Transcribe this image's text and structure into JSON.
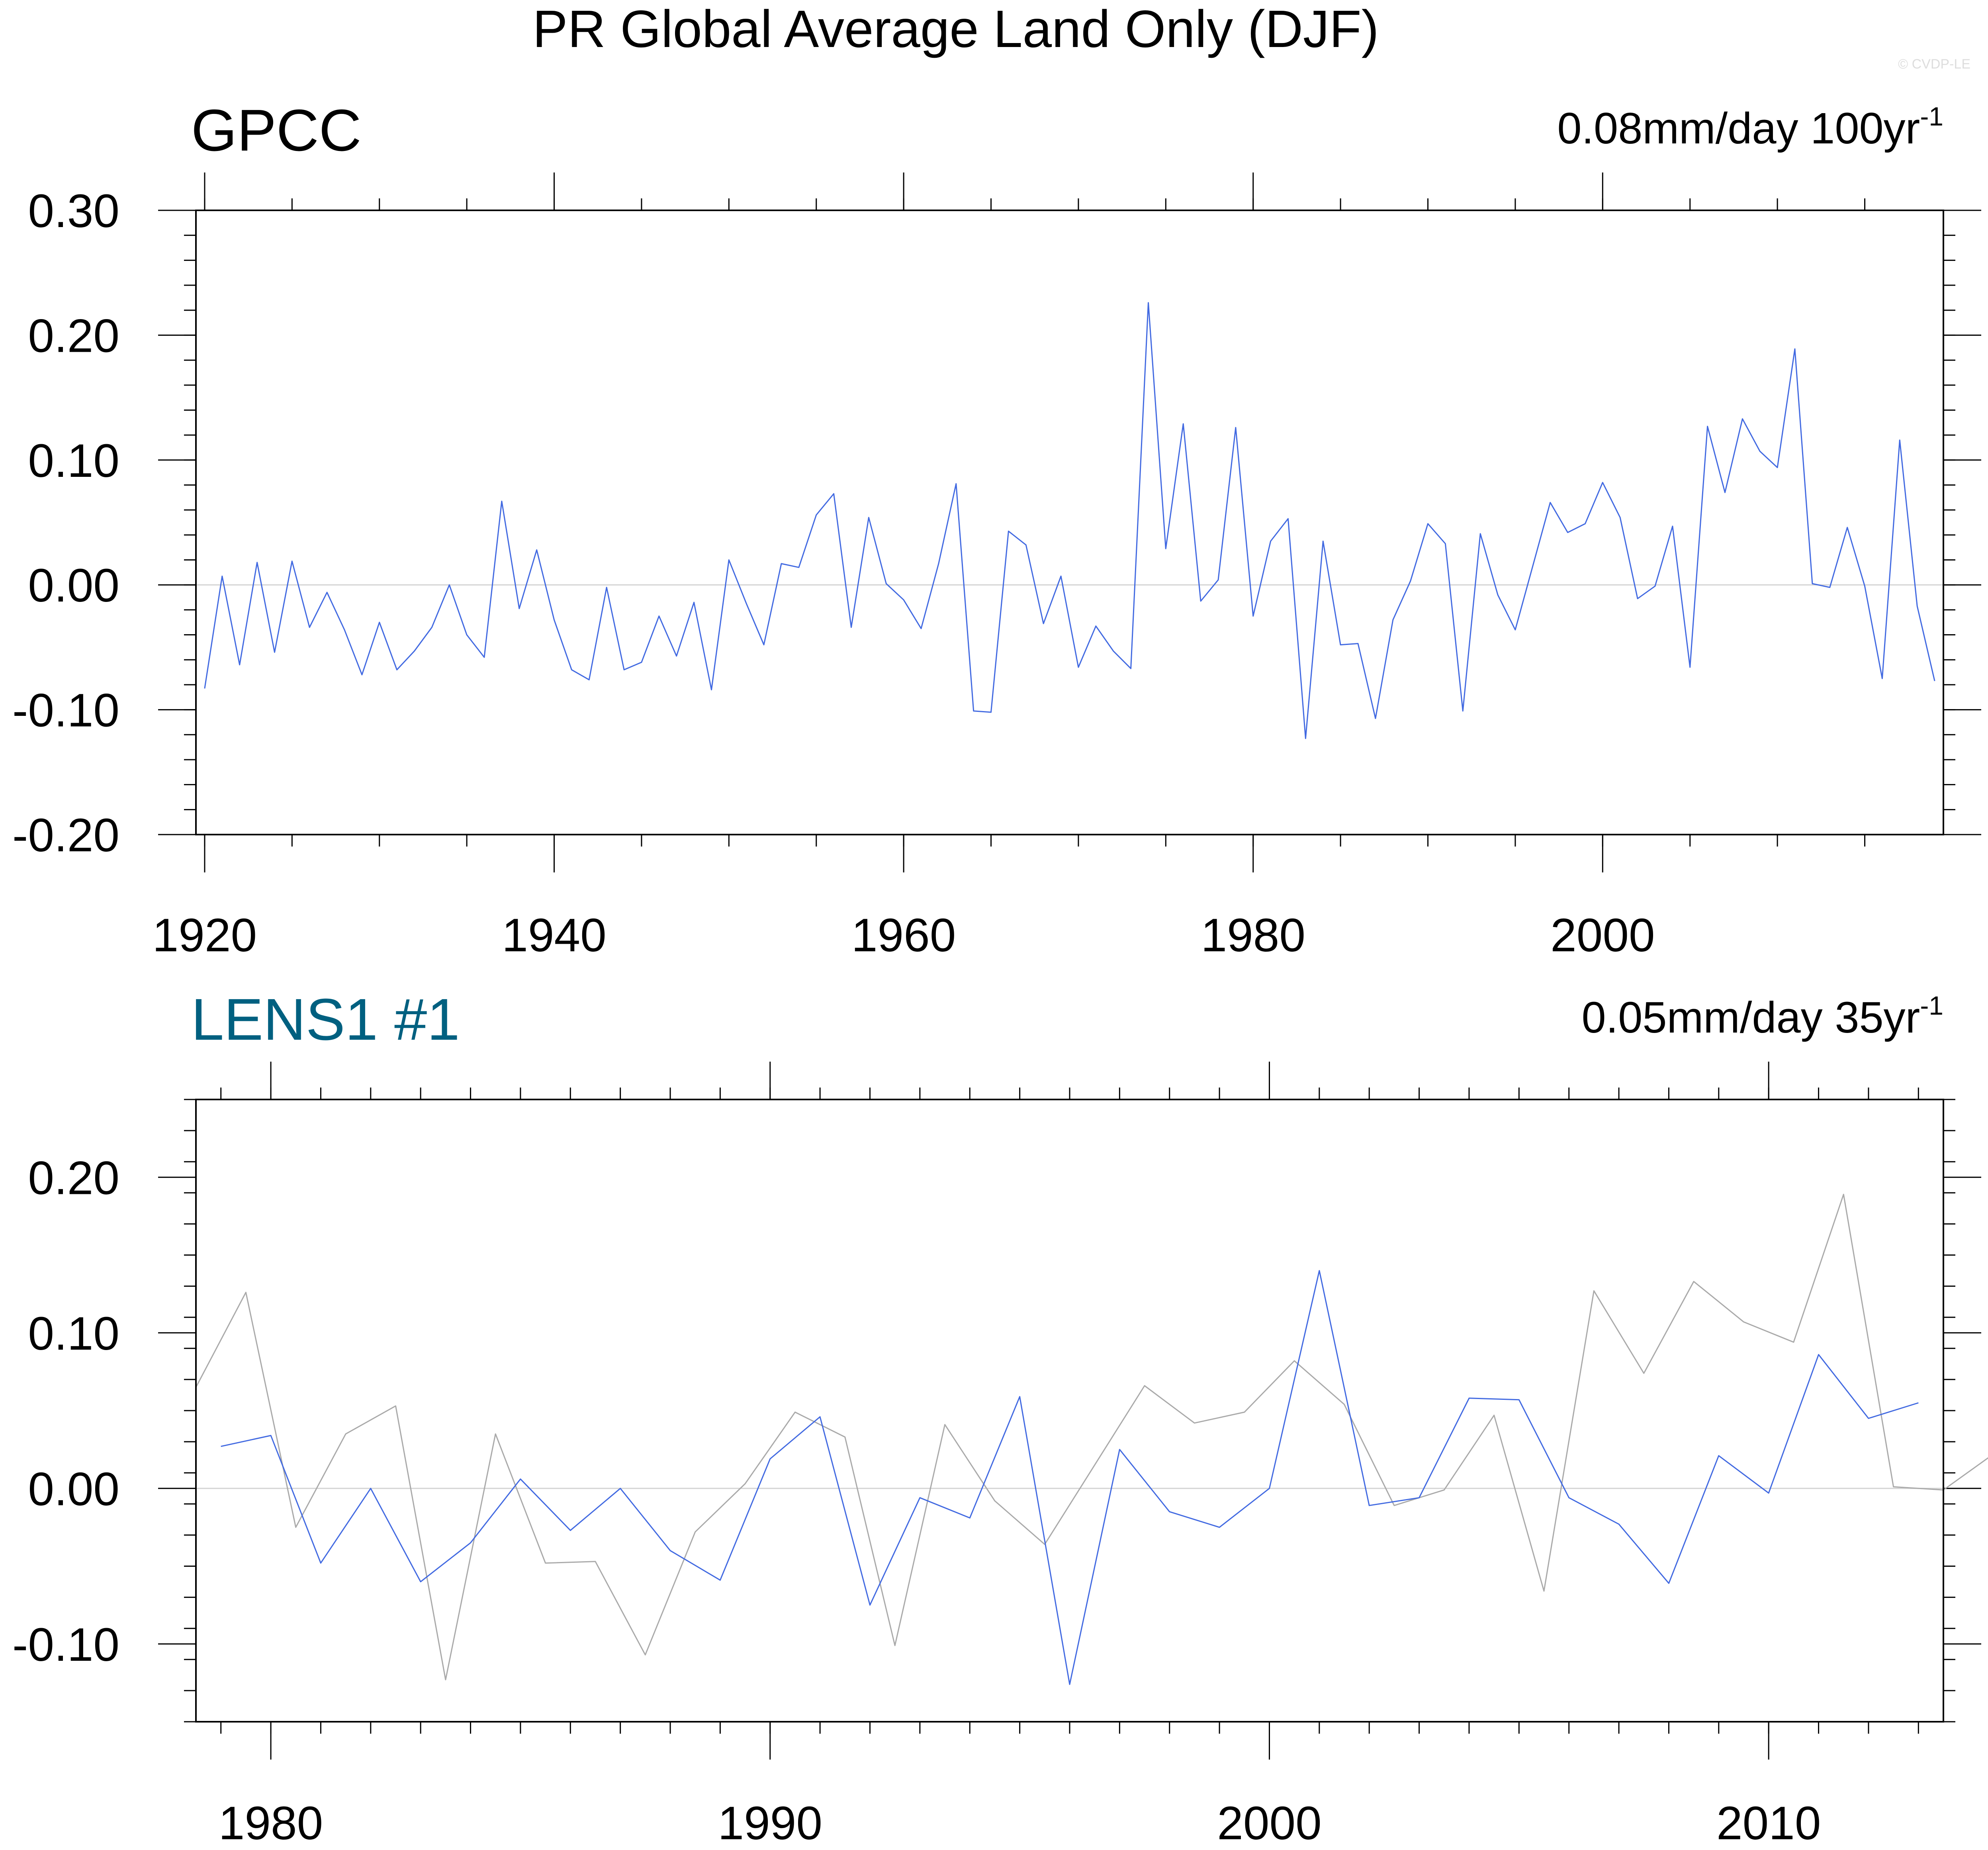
{
  "figure": {
    "title": "PR Global Average Land Only (DJF)",
    "copyright": "© CVDP-LE"
  },
  "colors": {
    "series_blue": "#4169e1",
    "series_gray": "#a9a9a9",
    "zero_line": "#d3d3d3",
    "frame": "#000000",
    "panel2_title": "#006080"
  },
  "chart_data": [
    {
      "type": "line",
      "title": "GPCC",
      "trend_label": "0.08mm/day 100yr",
      "trend_exponent": "-1",
      "ylim": [
        -0.2,
        0.3
      ],
      "yticks": [
        -0.2,
        -0.1,
        0.0,
        0.1,
        0.2,
        0.3
      ],
      "ytick_labels": [
        "-0.20",
        "-0.10",
        "0.00",
        "0.10",
        "0.20",
        "0.30"
      ],
      "xlim": [
        1919.5,
        2019.5
      ],
      "xticks": [
        1920,
        1940,
        1960,
        1980,
        2000
      ],
      "xtick_labels": [
        "1920",
        "1940",
        "1960",
        "1980",
        "2000"
      ],
      "x_start": 1920,
      "series": [
        {
          "color": "#4169e1",
          "values": [
            -0.083,
            0.007,
            -0.064,
            0.018,
            -0.054,
            0.019,
            -0.034,
            -0.006,
            -0.036,
            -0.072,
            -0.03,
            -0.068,
            -0.053,
            -0.034,
            0.0,
            -0.04,
            -0.058,
            0.067,
            -0.019,
            0.028,
            -0.028,
            -0.068,
            -0.076,
            -0.002,
            -0.068,
            -0.062,
            -0.025,
            -0.057,
            -0.014,
            -0.084,
            0.02,
            -0.015,
            -0.048,
            0.017,
            0.014,
            0.056,
            0.073,
            -0.034,
            0.054,
            0.001,
            -0.012,
            -0.035,
            0.017,
            0.081,
            -0.101,
            -0.102,
            0.043,
            0.032,
            -0.031,
            0.007,
            -0.066,
            -0.033,
            -0.053,
            -0.067,
            0.226,
            0.029,
            0.129,
            -0.013,
            0.004,
            0.126,
            -0.025,
            0.035,
            0.053,
            -0.123,
            0.035,
            -0.048,
            -0.047,
            -0.107,
            -0.028,
            0.003,
            0.049,
            0.033,
            -0.101,
            0.041,
            -0.008,
            -0.036,
            0.015,
            0.066,
            0.042,
            0.049,
            0.082,
            0.054,
            -0.011,
            -0.001,
            0.047,
            -0.066,
            0.127,
            0.074,
            0.133,
            0.107,
            0.094,
            0.189,
            0.001,
            -0.002,
            0.046,
            -0.001,
            -0.075,
            0.116,
            -0.017,
            -0.077
          ]
        }
      ]
    },
    {
      "type": "line",
      "title": "LENS1 #1",
      "trend_label": "0.05mm/day 35yr",
      "trend_exponent": "-1",
      "ylim": [
        -0.15,
        0.25
      ],
      "yticks": [
        -0.1,
        0.0,
        0.1,
        0.2
      ],
      "ytick_labels": [
        "-0.10",
        "0.00",
        "0.10",
        "0.20"
      ],
      "xlim": [
        1978.5,
        2013.5
      ],
      "xticks": [
        1980,
        1990,
        2000,
        2010
      ],
      "xtick_labels": [
        "1980",
        "1990",
        "2000",
        "2010"
      ],
      "series": [
        {
          "color": "#a9a9a9",
          "x_start": 1978.5,
          "values": [
            0.065,
            0.126,
            -0.025,
            0.035,
            0.053,
            -0.123,
            0.035,
            -0.048,
            -0.047,
            -0.107,
            -0.028,
            0.003,
            0.049,
            0.033,
            -0.101,
            0.041,
            -0.008,
            -0.036,
            0.015,
            0.066,
            0.042,
            0.049,
            0.082,
            0.054,
            -0.011,
            -0.001,
            0.047,
            -0.066,
            0.127,
            0.074,
            0.133,
            0.107,
            0.094,
            0.189,
            0.001,
            -0.001,
            0.022
          ]
        },
        {
          "color": "#4169e1",
          "x_start": 1979,
          "values": [
            0.027,
            0.034,
            -0.048,
            0.0,
            -0.06,
            -0.035,
            0.006,
            -0.027,
            0.0,
            -0.04,
            -0.059,
            0.019,
            0.046,
            -0.075,
            -0.006,
            -0.019,
            0.059,
            -0.126,
            0.025,
            -0.015,
            -0.025,
            0.0,
            0.14,
            -0.011,
            -0.006,
            0.058,
            0.057,
            -0.006,
            -0.023,
            -0.061,
            0.021,
            -0.003,
            0.086,
            0.045,
            0.055
          ]
        }
      ]
    }
  ]
}
